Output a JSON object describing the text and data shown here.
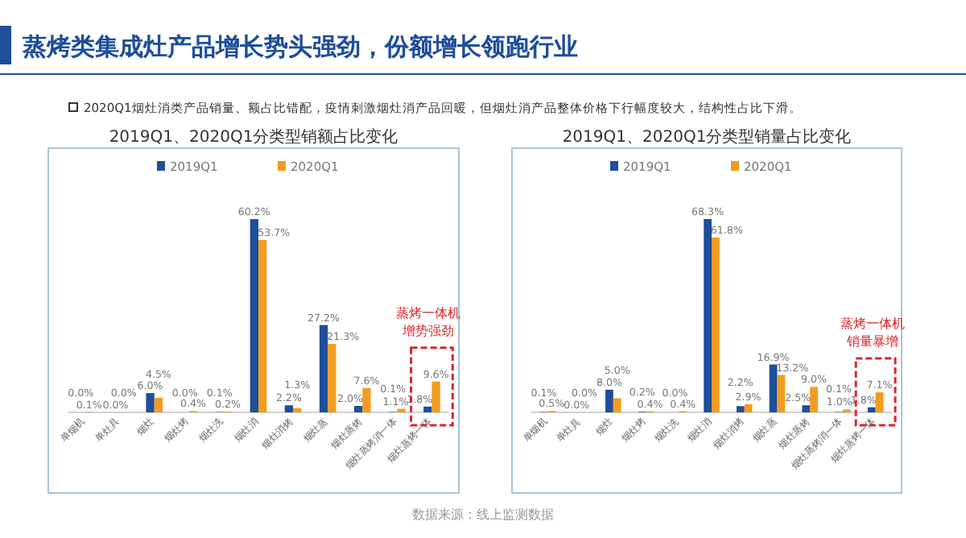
{
  "chart_data": [
    {
      "type": "bar",
      "title": "2019Q1、2020Q1分类型销额占比变化",
      "categories": [
        "单烟机",
        "单灶具",
        "烟灶",
        "烟灶烤",
        "烟灶洗",
        "烟灶消",
        "烟灶消烤",
        "烟灶蒸",
        "烟灶蒸烤",
        "烟灶蒸烤消一体",
        "烟灶蒸烤一体"
      ],
      "series": [
        {
          "name": "2019Q1",
          "color": "#1f4e9a",
          "values": [
            0.0,
            0.0,
            6.0,
            0.0,
            0.1,
            60.2,
            2.2,
            27.2,
            2.0,
            0.1,
            1.8
          ],
          "value_labels": [
            "0.0%",
            "0.0%",
            "6.0%",
            "0.0%",
            "0.1%",
            "60.2%",
            "2.2%",
            "27.2%",
            "2.0%",
            "0.1%",
            "1.8%"
          ]
        },
        {
          "name": "2020Q1",
          "color": "#f39c1f",
          "values": [
            0.1,
            0.0,
            4.5,
            0.4,
            0.2,
            53.7,
            1.3,
            21.3,
            7.6,
            1.1,
            9.6
          ],
          "value_labels": [
            "0.1%",
            "0.0%",
            "4.5%",
            "0.4%",
            "0.2%",
            "53.7%",
            "1.3%",
            "21.3%",
            "7.6%",
            "1.1%",
            "9.6%"
          ]
        }
      ],
      "tick_labels": "x",
      "legend": "top",
      "annotations": [
        "蒸烤类集成灶产品增长势头强劲，份额增长领跑行业",
        "2020Q1烟灶消类产品销量、额占比错配，疫情刺激烟灶消产品回暖，但烟灶消产品整体价格下行幅度较大，结构性占比下滑。",
        "数据来源：线上监测数据",
        "蒸烤一体机",
        "增势强劲"
      ]
    },
    {
      "type": "bar",
      "title": "2019Q1、2020Q1分类型销量占比变化",
      "categories": [
        "单烟机",
        "单灶具",
        "烟灶",
        "烟灶烤",
        "烟灶洗",
        "烟灶消",
        "烟灶消烤",
        "烟灶蒸",
        "烟灶蒸烤",
        "烟灶蒸烤消一体",
        "烟灶蒸烤一体"
      ],
      "series": [
        {
          "name": "2019Q1",
          "color": "#1f4e9a",
          "values": [
            0.1,
            0.0,
            8.0,
            0.2,
            0.0,
            68.3,
            2.2,
            16.9,
            2.5,
            0.1,
            1.8
          ],
          "value_labels": [
            "0.1%",
            "0.0%",
            "8.0%",
            "0.2%",
            "0.0%",
            "68.3%",
            "2.2%",
            "16.9%",
            "2.5%",
            "0.1%",
            "1.8%"
          ]
        },
        {
          "name": "2020Q1",
          "color": "#f39c1f",
          "values": [
            0.5,
            0.0,
            5.0,
            0.4,
            0.4,
            61.8,
            2.9,
            13.2,
            9.0,
            1.0,
            7.1
          ],
          "value_labels": [
            "0.5%",
            "0.0%",
            "5.0%",
            "0.4%",
            "0.4%",
            "61.8%",
            "2.9%",
            "13.2%",
            "9.0%",
            "1.0%",
            "7.1%"
          ]
        }
      ],
      "tick_labels": "x",
      "legend": "top",
      "annotations": [
        "蒸烤一体机",
        "销量暴增"
      ]
    }
  ]
}
